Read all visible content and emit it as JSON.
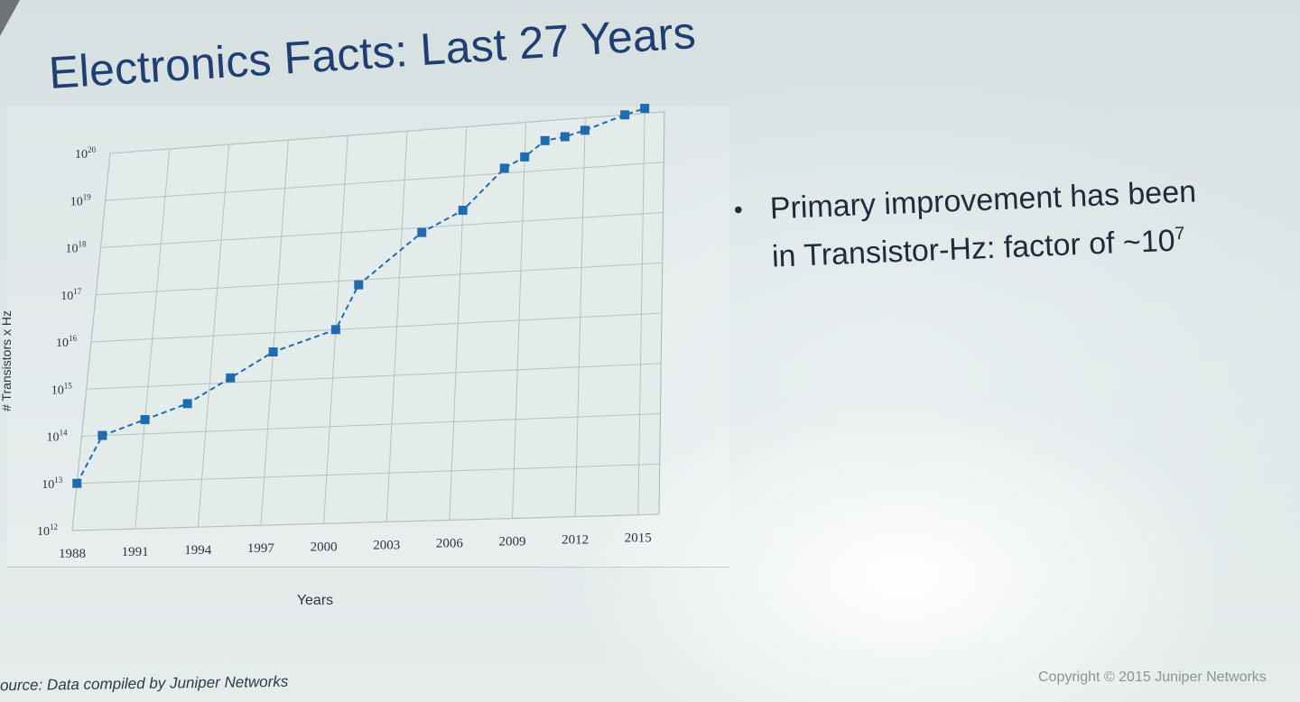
{
  "slide": {
    "title": "Electronics Facts: Last 27 Years",
    "bullet_text": "Primary improvement has been in Transistor-Hz: factor of ~10",
    "bullet_sup": "7",
    "source": "ource: Data compiled by Juniper Networks",
    "copyright": "Copyright © 2015 Juniper Networks"
  },
  "colors": {
    "title": "#1f3f73",
    "series": "#1f6bb0",
    "grid": "#b9c0c2"
  },
  "chart_data": {
    "type": "line",
    "xlabel": "Years",
    "ylabel": "# Transistors x Hz",
    "y_scale": "log",
    "ylim": [
      12,
      20
    ],
    "xlim": [
      1988,
      2016
    ],
    "grid": true,
    "x_ticks": [
      {
        "value": 1988,
        "label": "1988"
      },
      {
        "value": 1991,
        "label": "1991"
      },
      {
        "value": 1994,
        "label": "1994"
      },
      {
        "value": 1997,
        "label": "1997"
      },
      {
        "value": 2000,
        "label": "2000"
      },
      {
        "value": 2003,
        "label": "2003"
      },
      {
        "value": 2006,
        "label": "2006"
      },
      {
        "value": 2009,
        "label": "2009"
      },
      {
        "value": 2012,
        "label": "2012"
      },
      {
        "value": 2015,
        "label": "2015"
      }
    ],
    "y_ticks": [
      {
        "value": 12,
        "base": "10",
        "exp": "12"
      },
      {
        "value": 13,
        "base": "10",
        "exp": "13"
      },
      {
        "value": 14,
        "base": "10",
        "exp": "14"
      },
      {
        "value": 15,
        "base": "10",
        "exp": "15"
      },
      {
        "value": 16,
        "base": "10",
        "exp": "16"
      },
      {
        "value": 17,
        "base": "10",
        "exp": "17"
      },
      {
        "value": 18,
        "base": "10",
        "exp": "18"
      },
      {
        "value": 19,
        "base": "10",
        "exp": "19"
      },
      {
        "value": 20,
        "base": "10",
        "exp": "20"
      }
    ],
    "series": [
      {
        "x": [
          1988,
          1989,
          1991,
          1993,
          1995,
          1997,
          2000,
          2001,
          2004,
          2006,
          2008,
          2009,
          2010,
          2011,
          2012,
          2014,
          2015
        ],
        "y": [
          13.0,
          14.0,
          14.3,
          14.6,
          15.1,
          15.6,
          16.0,
          16.9,
          17.9,
          18.3,
          19.1,
          19.3,
          19.6,
          19.65,
          19.75,
          20.0,
          20.1
        ]
      }
    ]
  }
}
